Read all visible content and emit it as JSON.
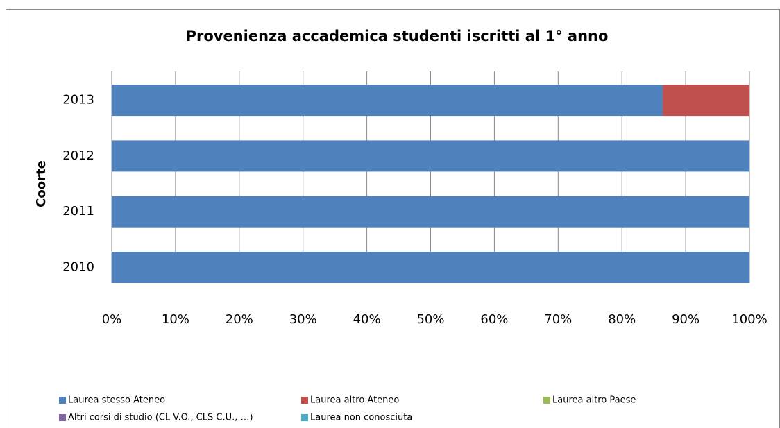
{
  "chart_data": {
    "type": "stacked-bar-horizontal",
    "title": "Provenienza accademica studenti iscritti al 1° anno",
    "y_axis_label": "Coorte",
    "categories": [
      "2010",
      "2011",
      "2012",
      "2013"
    ],
    "series": [
      {
        "name": "Laurea stesso Ateneo",
        "color": "#4f81bd",
        "values": [
          100,
          100,
          100,
          86.4
        ]
      },
      {
        "name": "Laurea altro Ateneo",
        "color": "#c0504d",
        "values": [
          0,
          0,
          0,
          13.6
        ]
      },
      {
        "name": "Laurea altro Paese",
        "color": "#9bbb59",
        "values": [
          0,
          0,
          0,
          0
        ]
      },
      {
        "name": "Altri corsi di studio (CL V.O., CLS C.U., …)",
        "color": "#8064a2",
        "values": [
          0,
          0,
          0,
          0
        ]
      },
      {
        "name": "Laurea non conosciuta",
        "color": "#4bacc6",
        "values": [
          0,
          0,
          0,
          0
        ]
      }
    ],
    "xlim": [
      0,
      100
    ],
    "xticks": [
      {
        "value": 0,
        "label": "0%"
      },
      {
        "value": 10,
        "label": "10%"
      },
      {
        "value": 20,
        "label": "20%"
      },
      {
        "value": 30,
        "label": "30%"
      },
      {
        "value": 40,
        "label": "40%"
      },
      {
        "value": 50,
        "label": "50%"
      },
      {
        "value": 60,
        "label": "60%"
      },
      {
        "value": 70,
        "label": "70%"
      },
      {
        "value": 80,
        "label": "80%"
      },
      {
        "value": 90,
        "label": "90%"
      },
      {
        "value": 100,
        "label": "100%"
      }
    ],
    "grid": true,
    "legend": "bottom"
  }
}
